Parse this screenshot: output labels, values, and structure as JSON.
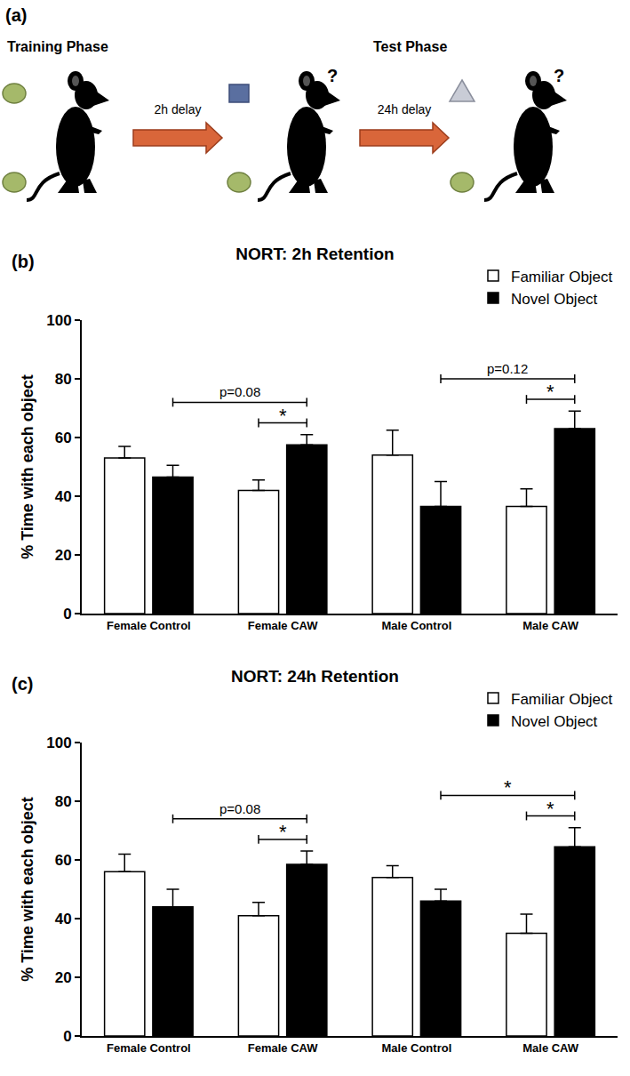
{
  "panel_a": {
    "label": "(a)",
    "training": "Training Phase",
    "test": "Test Phase",
    "delays": [
      "2h delay",
      "24h delay"
    ],
    "question": "?"
  },
  "chart_data": [
    {
      "type": "bar",
      "panel": "(b)",
      "title": "NORT: 2h Retention",
      "categories": [
        "Female Control",
        "Female CAW",
        "Male Control",
        "Male CAW"
      ],
      "series": [
        {
          "name": "Familiar Object",
          "color": "#ffffff",
          "values": [
            53,
            42,
            54,
            36.5
          ],
          "errors": [
            4,
            3.5,
            8.5,
            6
          ]
        },
        {
          "name": "Novel Object",
          "color": "#000000",
          "values": [
            46.5,
            57.5,
            36.5,
            63
          ],
          "errors": [
            4,
            3.5,
            8.5,
            6
          ]
        }
      ],
      "ylabel": "% Time with each object",
      "ylim": [
        0,
        100
      ],
      "yticks": [
        0,
        20,
        40,
        60,
        80,
        100
      ],
      "legend": "upper right",
      "grid": false,
      "brackets": [
        {
          "label": "*",
          "from": [
            "Female CAW",
            "Familiar Object"
          ],
          "to": [
            "Female CAW",
            "Novel Object"
          ]
        },
        {
          "label": "p=0.08",
          "from": [
            "Female Control",
            "Novel Object"
          ],
          "to": [
            "Female CAW",
            "Novel Object"
          ]
        },
        {
          "label": "*",
          "from": [
            "Male CAW",
            "Familiar Object"
          ],
          "to": [
            "Male CAW",
            "Novel Object"
          ]
        },
        {
          "label": "p=0.12",
          "from": [
            "Male Control",
            "Novel Object"
          ],
          "to": [
            "Male CAW",
            "Novel Object"
          ]
        }
      ]
    },
    {
      "type": "bar",
      "panel": "(c)",
      "title": "NORT: 24h Retention",
      "categories": [
        "Female Control",
        "Female CAW",
        "Male Control",
        "Male CAW"
      ],
      "series": [
        {
          "name": "Familiar Object",
          "color": "#ffffff",
          "values": [
            56,
            41,
            54,
            35
          ],
          "errors": [
            6,
            4.5,
            4,
            6.5
          ]
        },
        {
          "name": "Novel Object",
          "color": "#000000",
          "values": [
            44,
            58.5,
            46,
            64.5
          ],
          "errors": [
            6,
            4.5,
            4,
            6.5
          ]
        }
      ],
      "ylabel": "% Time with each object",
      "ylim": [
        0,
        100
      ],
      "yticks": [
        0,
        20,
        40,
        60,
        80,
        100
      ],
      "legend": "upper right",
      "grid": false,
      "brackets": [
        {
          "label": "*",
          "from": [
            "Female CAW",
            "Familiar Object"
          ],
          "to": [
            "Female CAW",
            "Novel Object"
          ]
        },
        {
          "label": "p=0.08",
          "from": [
            "Female Control",
            "Novel Object"
          ],
          "to": [
            "Female CAW",
            "Novel Object"
          ]
        },
        {
          "label": "*",
          "from": [
            "Male CAW",
            "Familiar Object"
          ],
          "to": [
            "Male CAW",
            "Novel Object"
          ]
        },
        {
          "label": "*",
          "from": [
            "Male Control",
            "Novel Object"
          ],
          "to": [
            "Male CAW",
            "Novel Object"
          ]
        }
      ]
    }
  ]
}
